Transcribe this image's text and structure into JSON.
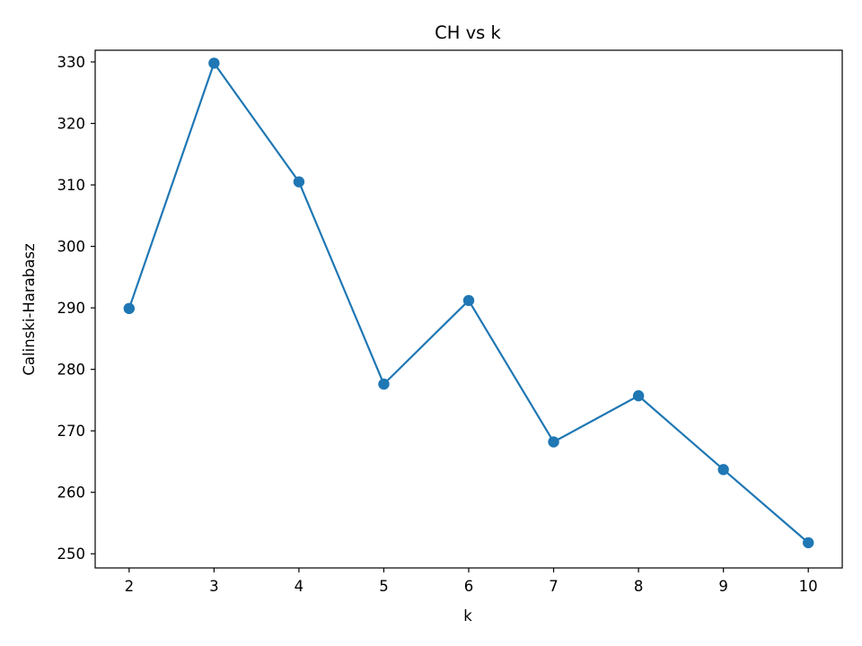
{
  "chart_data": {
    "type": "line",
    "title": "CH vs k",
    "xlabel": "k",
    "ylabel": "Calinski-Harabasz",
    "x": [
      2,
      3,
      4,
      5,
      6,
      7,
      8,
      9,
      10
    ],
    "series": [
      {
        "values": [
          289.9,
          329.8,
          310.5,
          277.6,
          291.2,
          268.2,
          275.7,
          263.7,
          251.8
        ],
        "color": "#1f77b4",
        "marker": "circle"
      }
    ],
    "xticks": [
      2,
      3,
      4,
      5,
      6,
      7,
      8,
      9,
      10
    ],
    "yticks": [
      250,
      260,
      270,
      280,
      290,
      300,
      310,
      320,
      330
    ],
    "xlim": [
      1.6,
      10.4
    ],
    "ylim": [
      247.7,
      331.9
    ],
    "grid": false
  }
}
